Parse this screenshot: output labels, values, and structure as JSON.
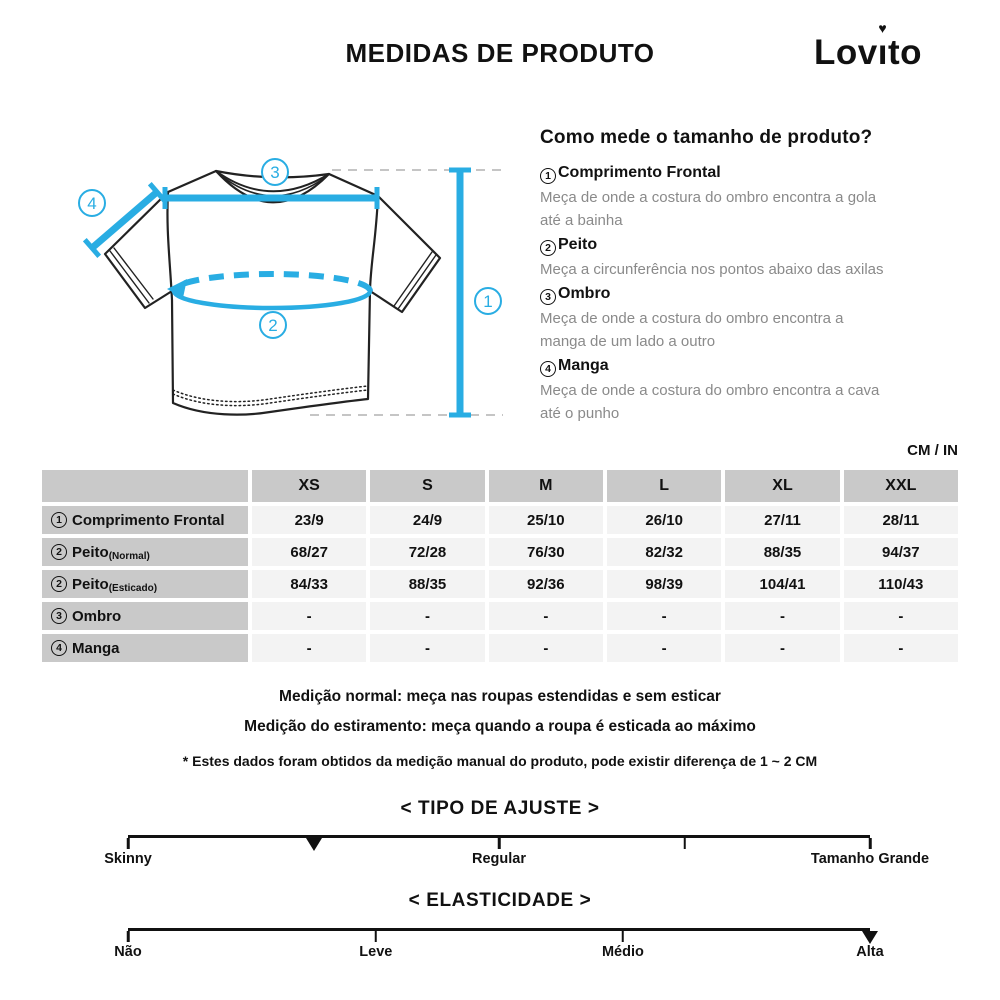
{
  "header": {
    "title": "MEDIDAS DE PRODUTO",
    "brand": "Lovito",
    "brand_pre": "Lov",
    "brand_i": "ı",
    "brand_heart": "♥",
    "brand_post": "to"
  },
  "diagram": {
    "accent_color": "#29ade3",
    "badges": {
      "b1": "1",
      "b2": "2",
      "b3": "3",
      "b4": "4"
    }
  },
  "instructions": {
    "heading": "Como mede o tamanho de produto?",
    "items": [
      {
        "num": "1",
        "name": "Comprimento Frontal",
        "desc": "Meça de onde a costura do ombro encontra a gola\naté a bainha"
      },
      {
        "num": "2",
        "name": "Peito",
        "desc": "Meça a circunferência nos pontos abaixo das axilas"
      },
      {
        "num": "3",
        "name": "Ombro",
        "desc": "Meça de onde a costura do ombro encontra a\nmanga de um lado a outro"
      },
      {
        "num": "4",
        "name": "Manga",
        "desc": "Meça de onde a costura do ombro encontra a cava\naté o punho"
      }
    ]
  },
  "table": {
    "unit_label": "CM / IN",
    "columns": [
      "XS",
      "S",
      "M",
      "L",
      "XL",
      "XXL"
    ],
    "rows": [
      {
        "num": "1",
        "label": "Comprimento Frontal",
        "sub": "",
        "values": [
          "23/9",
          "24/9",
          "25/10",
          "26/10",
          "27/11",
          "28/11"
        ]
      },
      {
        "num": "2",
        "label": "Peito",
        "sub": "(Normal)",
        "values": [
          "68/27",
          "72/28",
          "76/30",
          "82/32",
          "88/35",
          "94/37"
        ]
      },
      {
        "num": "2",
        "label": "Peito",
        "sub": "(Esticado)",
        "values": [
          "84/33",
          "88/35",
          "92/36",
          "98/39",
          "104/41",
          "110/43"
        ]
      },
      {
        "num": "3",
        "label": "Ombro",
        "sub": "",
        "values": [
          "-",
          "-",
          "-",
          "-",
          "-",
          "-"
        ]
      },
      {
        "num": "4",
        "label": "Manga",
        "sub": "",
        "values": [
          "-",
          "-",
          "-",
          "-",
          "-",
          "-"
        ]
      }
    ]
  },
  "notes": {
    "line1": "Medição normal: meça nas roupas estendidas e sem esticar",
    "line2": "Medição do estiramento: meça quando a roupa é esticada ao máximo",
    "disclaimer": "* Estes dados foram obtidos da medição manual do produto, pode existir diferença de 1 ~ 2 CM"
  },
  "fit_scale": {
    "title": "< TIPO DE AJUSTE >",
    "marker_position_pct": 25,
    "tick_positions_pct": [
      0,
      50,
      75,
      100
    ],
    "labels": [
      {
        "text": "Skinny",
        "pos_pct": 0
      },
      {
        "text": "Regular",
        "pos_pct": 50
      },
      {
        "text": "Tamanho Grande",
        "pos_pct": 100
      }
    ]
  },
  "elasticity_scale": {
    "title": "< ELASTICIDADE >",
    "marker_position_pct": 100,
    "tick_positions_pct": [
      0,
      33.4,
      66.7
    ],
    "labels": [
      {
        "text": "Não",
        "pos_pct": 0
      },
      {
        "text": "Leve",
        "pos_pct": 33.4
      },
      {
        "text": "Médio",
        "pos_pct": 66.7
      },
      {
        "text": "Alta",
        "pos_pct": 100
      }
    ]
  }
}
